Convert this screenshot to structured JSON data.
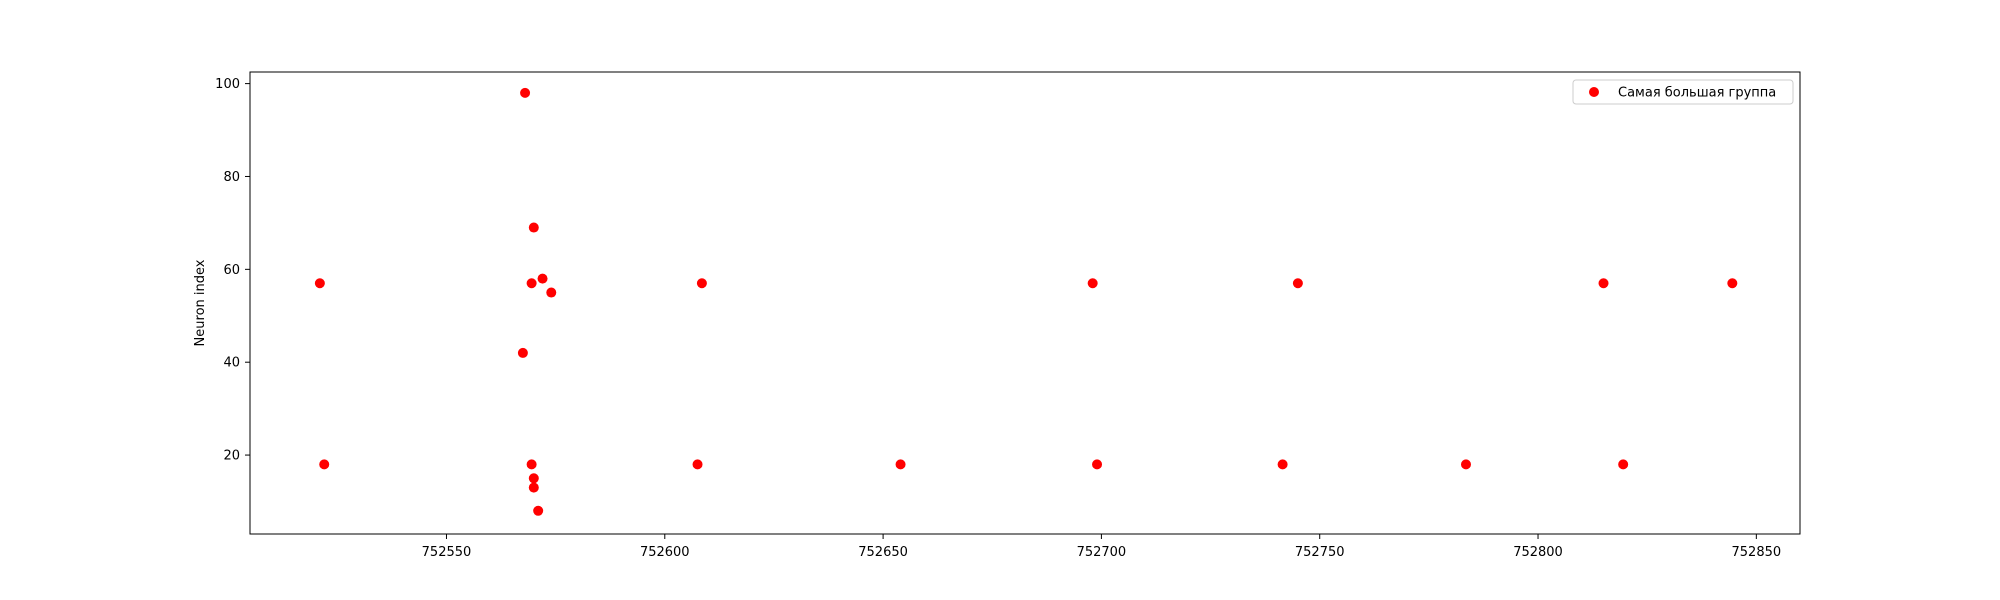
{
  "chart_data": {
    "type": "scatter",
    "title": "",
    "xlabel": "",
    "ylabel": "Neuron index",
    "xlim": [
      752505,
      752860
    ],
    "ylim": [
      3,
      102.5
    ],
    "xticks": [
      752550,
      752600,
      752650,
      752700,
      752750,
      752800,
      752850
    ],
    "yticks": [
      20,
      40,
      60,
      80,
      100
    ],
    "grid": false,
    "legend": "top-right",
    "series": [
      {
        "name": "Самая большая группа",
        "color": "#ff0000",
        "marker": "circle",
        "points": [
          {
            "x": 752521,
            "y": 57
          },
          {
            "x": 752522,
            "y": 18
          },
          {
            "x": 752567.5,
            "y": 42
          },
          {
            "x": 752568,
            "y": 98
          },
          {
            "x": 752569.5,
            "y": 57
          },
          {
            "x": 752569.5,
            "y": 18
          },
          {
            "x": 752570,
            "y": 69
          },
          {
            "x": 752570,
            "y": 15
          },
          {
            "x": 752570,
            "y": 13
          },
          {
            "x": 752571,
            "y": 8
          },
          {
            "x": 752572,
            "y": 58
          },
          {
            "x": 752574,
            "y": 55
          },
          {
            "x": 752607.5,
            "y": 18
          },
          {
            "x": 752608.5,
            "y": 57
          },
          {
            "x": 752654,
            "y": 18
          },
          {
            "x": 752698,
            "y": 57
          },
          {
            "x": 752699,
            "y": 18
          },
          {
            "x": 752741.5,
            "y": 18
          },
          {
            "x": 752745,
            "y": 57
          },
          {
            "x": 752783.5,
            "y": 18
          },
          {
            "x": 752815,
            "y": 57
          },
          {
            "x": 752819.5,
            "y": 18
          },
          {
            "x": 752844.5,
            "y": 57
          }
        ]
      }
    ]
  }
}
